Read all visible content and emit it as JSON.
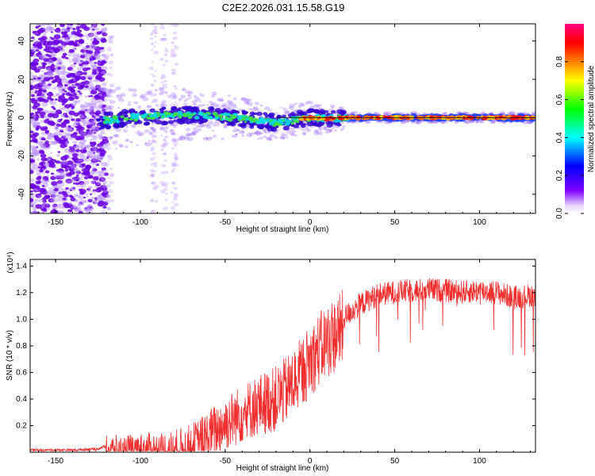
{
  "figure": {
    "title": "C2E2.2026.031.15.58.G19"
  },
  "chart_data": [
    {
      "type": "heatmap",
      "xlabel": "Height of straight line (km)",
      "ylabel": "Frequency (Hz)",
      "xlim": [
        -165,
        133
      ],
      "ylim": [
        -50,
        49
      ],
      "x_ticks": [
        -150,
        -100,
        -50,
        0,
        50,
        100
      ],
      "y_ticks": [
        -40,
        -20,
        0,
        20,
        40
      ],
      "colorbar": {
        "label": "Normalized spectral amplitude",
        "range": [
          0.0,
          1.0
        ],
        "ticks": [
          "0.0",
          "0.2",
          "0.4",
          "0.6",
          "0.8"
        ],
        "colors": [
          "#ffffff",
          "#8000ff",
          "#0000ff",
          "#00ffff",
          "#00ff00",
          "#ffff00",
          "#ff8000",
          "#ff0000",
          "#ff0080"
        ]
      },
      "ridge": {
        "description_points_x": [
          -125,
          -100,
          -75,
          -50,
          -30,
          -20,
          -10,
          0,
          10,
          20,
          133
        ],
        "description_points_y": [
          -2,
          0.5,
          1.5,
          0.5,
          -1.5,
          -2.5,
          -1.5,
          0,
          -0.5,
          0,
          0
        ]
      },
      "line_color": "#000000"
    },
    {
      "type": "line",
      "xlabel": "Height of straight line (km)",
      "ylabel": "SNR (10 * v/v)",
      "y_multiplier": "(x10⁴)",
      "xlim": [
        -165,
        133
      ],
      "ylim": [
        0,
        1.45
      ],
      "x_ticks": [
        -150,
        -100,
        -50,
        0,
        50,
        100
      ],
      "y_ticks": [
        "0.2",
        "0.4",
        "0.6",
        "0.8",
        "1.0",
        "1.2",
        "1.4"
      ],
      "series": [
        {
          "color": "#f03030",
          "x": [
            -165,
            -140,
            -125,
            -118,
            -110,
            -100,
            -90,
            -80,
            -70,
            -60,
            -50,
            -40,
            -30,
            -20,
            -10,
            0,
            10,
            20,
            30,
            40,
            50,
            60,
            70,
            80,
            90,
            100,
            110,
            120,
            133
          ],
          "y": [
            0.02,
            0.02,
            0.03,
            0.06,
            0.05,
            0.06,
            0.06,
            0.07,
            0.1,
            0.2,
            0.3,
            0.38,
            0.45,
            0.5,
            0.62,
            0.8,
            0.95,
            1.05,
            1.15,
            1.22,
            1.24,
            1.25,
            1.26,
            1.25,
            1.24,
            1.25,
            1.24,
            1.2,
            1.22
          ]
        }
      ]
    }
  ]
}
